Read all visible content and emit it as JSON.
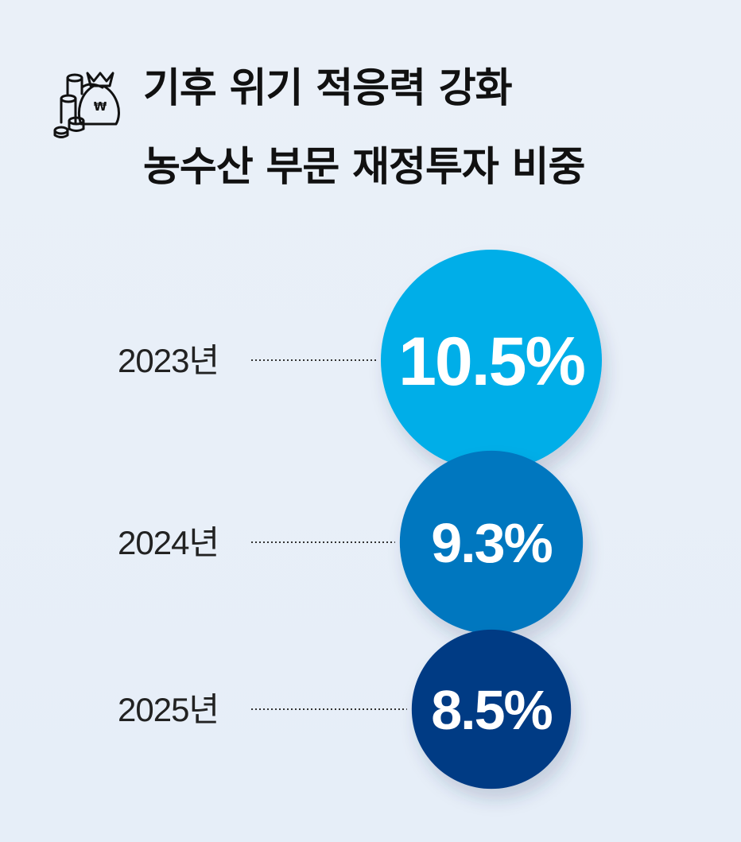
{
  "header": {
    "icon": "money-bag-coins-icon",
    "title_line1": "기후 위기 적응력 강화",
    "title_line2": "농수산 부문 재정투자 비중"
  },
  "chart_data": {
    "type": "bubble",
    "unit": "%",
    "categories": [
      "2023년",
      "2024년",
      "2025년"
    ],
    "values": [
      10.5,
      9.3,
      8.5
    ],
    "value_labels": [
      "10.5%",
      "9.3%",
      "8.5%"
    ],
    "colors": [
      "#00aee8",
      "#0077bf",
      "#003b84"
    ]
  }
}
